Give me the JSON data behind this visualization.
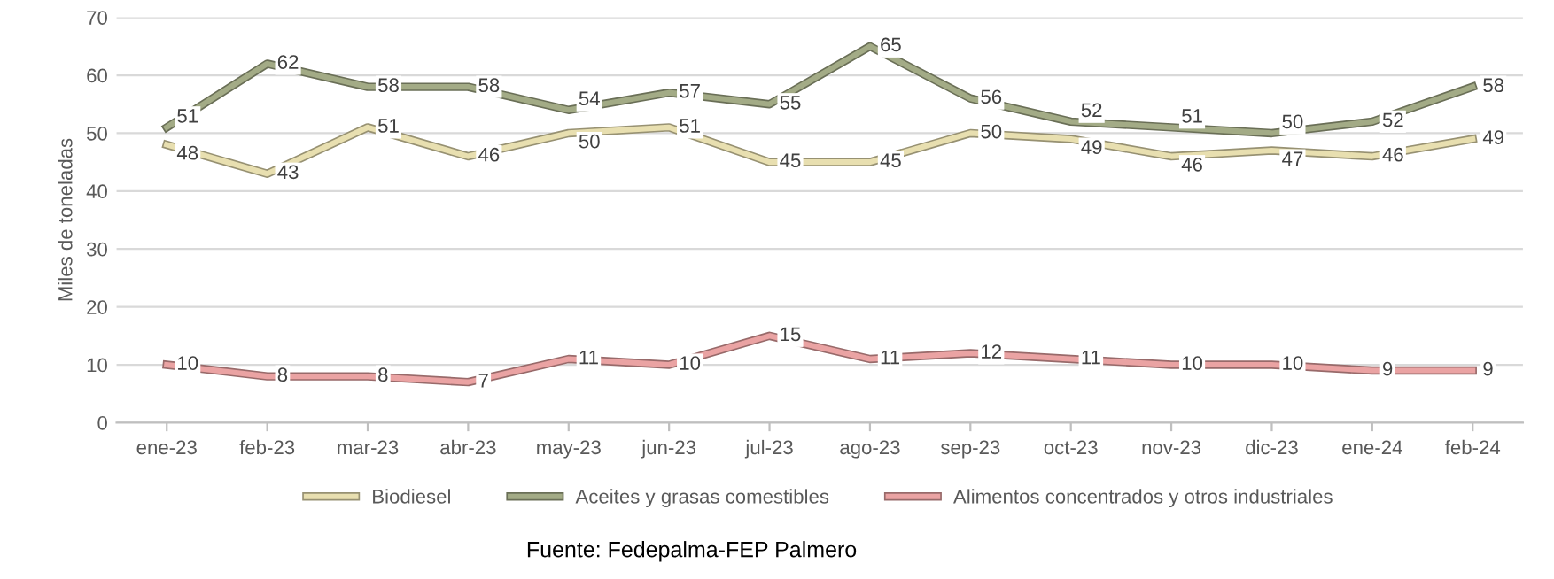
{
  "chart_data": {
    "type": "line",
    "ylabel": "Miles de toneladas",
    "categories": [
      "ene-23",
      "feb-23",
      "mar-23",
      "abr-23",
      "may-23",
      "jun-23",
      "jul-23",
      "ago-23",
      "sep-23",
      "oct-23",
      "nov-23",
      "dic-23",
      "ene-24",
      "feb-24"
    ],
    "series": [
      {
        "name": "Biodiesel",
        "color": "#e8dfb0",
        "values": [
          48,
          43,
          51,
          46,
          50,
          51,
          45,
          45,
          50,
          49,
          46,
          47,
          46,
          49
        ]
      },
      {
        "name": "Aceites y grasas comestibles",
        "color": "#a3ab86",
        "values": [
          51,
          62,
          58,
          58,
          54,
          57,
          55,
          65,
          56,
          52,
          51,
          50,
          52,
          58
        ]
      },
      {
        "name": "Alimentos concentrados y otros industriales",
        "color": "#eaa3a3",
        "values": [
          10,
          8,
          8,
          7,
          11,
          10,
          15,
          11,
          12,
          11,
          10,
          10,
          9,
          9
        ]
      }
    ],
    "ylim": [
      0,
      70
    ],
    "yticks": [
      0,
      10,
      20,
      30,
      40,
      50,
      60,
      70
    ],
    "grid": "y",
    "legend": "bottom",
    "data_labels": true,
    "line_style": "solid",
    "marker": "none",
    "annotations": [
      "Fuente: Fedepalma-FEP Palmero"
    ]
  }
}
